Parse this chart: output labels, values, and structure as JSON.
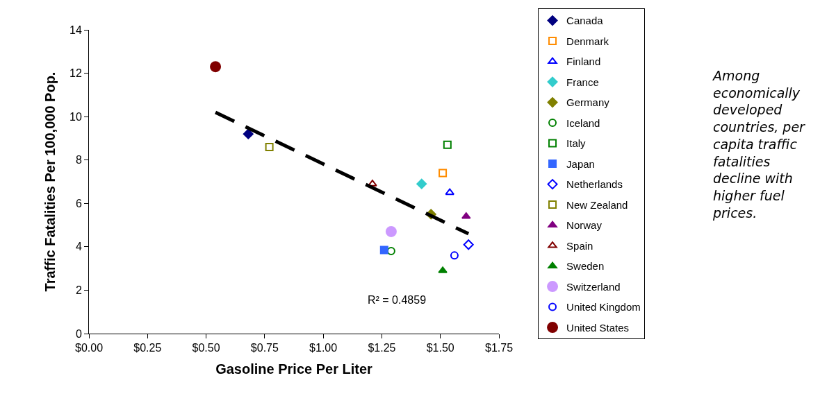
{
  "chart_data": {
    "type": "scatter",
    "xlabel": "Gasoline Price Per Liter",
    "ylabel": "Traffic Fatalities Per 100,000 Pop.",
    "xlim": [
      0,
      1.75
    ],
    "xticks": [
      {
        "value": 0,
        "label": "$0.00"
      },
      {
        "value": 0.25,
        "label": "$0.25"
      },
      {
        "value": 0.5,
        "label": "$0.50"
      },
      {
        "value": 0.75,
        "label": "$0.75"
      },
      {
        "value": 1.0,
        "label": "$1.00"
      },
      {
        "value": 1.25,
        "label": "$1.25"
      },
      {
        "value": 1.5,
        "label": "$1.50"
      },
      {
        "value": 1.75,
        "label": "$1.75"
      }
    ],
    "ylim": [
      0,
      14
    ],
    "yticks": [
      0,
      2,
      4,
      6,
      8,
      10,
      12,
      14
    ],
    "grid": false,
    "legend": "right",
    "series": [
      {
        "name": "Canada",
        "color": "#000080",
        "marker": "diamond",
        "x": [
          0.68
        ],
        "values": [
          9.2
        ]
      },
      {
        "name": "Denmark",
        "color": "#ff8c00",
        "marker": "square-open",
        "x": [
          1.51
        ],
        "values": [
          7.4
        ]
      },
      {
        "name": "Finland",
        "color": "#0000ff",
        "marker": "triangle-open",
        "x": [
          1.54
        ],
        "values": [
          6.5
        ]
      },
      {
        "name": "France",
        "color": "#33cccc",
        "marker": "diamond",
        "x": [
          1.42
        ],
        "values": [
          6.9
        ]
      },
      {
        "name": "Germany",
        "color": "#808000",
        "marker": "diamond",
        "x": [
          1.46
        ],
        "values": [
          5.5
        ]
      },
      {
        "name": "Iceland",
        "color": "#008000",
        "marker": "circle-open",
        "x": [
          1.29
        ],
        "values": [
          3.8
        ]
      },
      {
        "name": "Italy",
        "color": "#008000",
        "marker": "square-open",
        "x": [
          1.53
        ],
        "values": [
          8.7
        ]
      },
      {
        "name": "Japan",
        "color": "#3366ff",
        "marker": "square",
        "x": [
          1.26
        ],
        "values": [
          3.85
        ]
      },
      {
        "name": "Netherlands",
        "color": "#0000ff",
        "marker": "diamond-open",
        "x": [
          1.62
        ],
        "values": [
          4.1
        ]
      },
      {
        "name": "New Zealand",
        "color": "#808000",
        "marker": "square-open",
        "x": [
          0.77
        ],
        "values": [
          8.6
        ]
      },
      {
        "name": "Norway",
        "color": "#800080",
        "marker": "triangle",
        "x": [
          1.61
        ],
        "values": [
          5.4
        ]
      },
      {
        "name": "Spain",
        "color": "#800000",
        "marker": "triangle-open",
        "x": [
          1.21
        ],
        "values": [
          6.9
        ]
      },
      {
        "name": "Sweden",
        "color": "#008000",
        "marker": "triangle",
        "x": [
          1.51
        ],
        "values": [
          2.9
        ]
      },
      {
        "name": "Switzerland",
        "color": "#cc99ff",
        "marker": "circle",
        "x": [
          1.29
        ],
        "values": [
          4.7
        ]
      },
      {
        "name": "United Kingdom",
        "color": "#0000ff",
        "marker": "circle-open",
        "x": [
          1.56
        ],
        "values": [
          3.6
        ]
      },
      {
        "name": "United States",
        "color": "#800000",
        "marker": "circle",
        "x": [
          0.54
        ],
        "values": [
          12.3
        ]
      },
      {
        "type": "line",
        "color": "#000000",
        "line_style": "dashed",
        "x": [
          0.54,
          1.62
        ],
        "values": [
          10.2,
          4.6
        ]
      }
    ],
    "annotations": [
      "R² = 0.4859",
      "Among economically developed countries, per capita traffic fatalities decline with higher fuel prices."
    ]
  }
}
